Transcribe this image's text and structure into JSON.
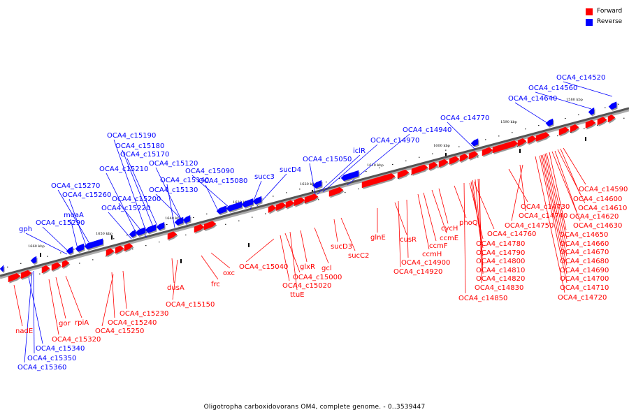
{
  "legend": {
    "forward": {
      "label": "Forward",
      "color": "#ff0000"
    },
    "reverse": {
      "label": "Reverse",
      "color": "#0000ff"
    }
  },
  "caption": "Oligotropha carboxidovorans OM4, complete genome. - 0..3539447",
  "track": {
    "kbp_ticks": [
      "1580 kbp",
      "1590 kbp",
      "1600 kbp",
      "1610 kbp",
      "1620 kbp",
      "1630 kbp",
      "1640 kbp",
      "1650 kbp",
      "1660 kbp"
    ]
  },
  "forward_labels": [
    "nadE",
    "OCA4_c15320",
    "gor",
    "rpiA",
    "OCA4_c15230",
    "OCA4_c15240",
    "OCA4_c15250",
    "dusA",
    "OCA4_c15150",
    "frc",
    "oxc",
    "OCA4_c15040",
    "OCA4_c15000",
    "OCA4_c15020",
    "ttuE",
    "glxR",
    "gcl",
    "sucD3",
    "sucC2",
    "glnE",
    "cusR",
    "OCA4_c14900",
    "OCA4_c14920",
    "ccmH",
    "ccmF",
    "ccmE",
    "cycH",
    "phoQ",
    "OCA4_c14760",
    "OCA4_c14780",
    "OCA4_c14790",
    "OCA4_c14800",
    "OCA4_c14810",
    "OCA4_c14820",
    "OCA4_c14830",
    "OCA4_c14850",
    "OCA4_c14730",
    "OCA4_c14740",
    "OCA4_c14750",
    "OCA4_c14590",
    "OCA4_c14600",
    "OCA4_c14610",
    "OCA4_c14620",
    "OCA4_c14630",
    "OCA4_c14650",
    "OCA4_c14660",
    "OCA4_c14670",
    "OCA4_c14680",
    "OCA4_c14690",
    "OCA4_c14700",
    "OCA4_c14710",
    "OCA4_c14720"
  ],
  "reverse_labels": [
    "OCA4_c14520",
    "OCA4_c14560",
    "OCA4_c14640",
    "OCA4_c14770",
    "OCA4_c14940",
    "OCA4_c14970",
    "iclR",
    "OCA4_c15050",
    "sucD4",
    "succ3",
    "OCA4_c15090",
    "OCA4_c15080",
    "OCA4_c15120",
    "OCA4_c15130",
    "OCA4_c15140",
    "OCA4_c15190",
    "OCA4_c15180",
    "OCA4_c15170",
    "OCA4_c15210",
    "OCA4_c15200",
    "OCA4_c15220",
    "OCA4_c15270",
    "OCA4_c15260",
    "moaA",
    "OCA4_c15290",
    "gph",
    "OCA4_c15340",
    "OCA4_c15350",
    "OCA4_c15360"
  ]
}
